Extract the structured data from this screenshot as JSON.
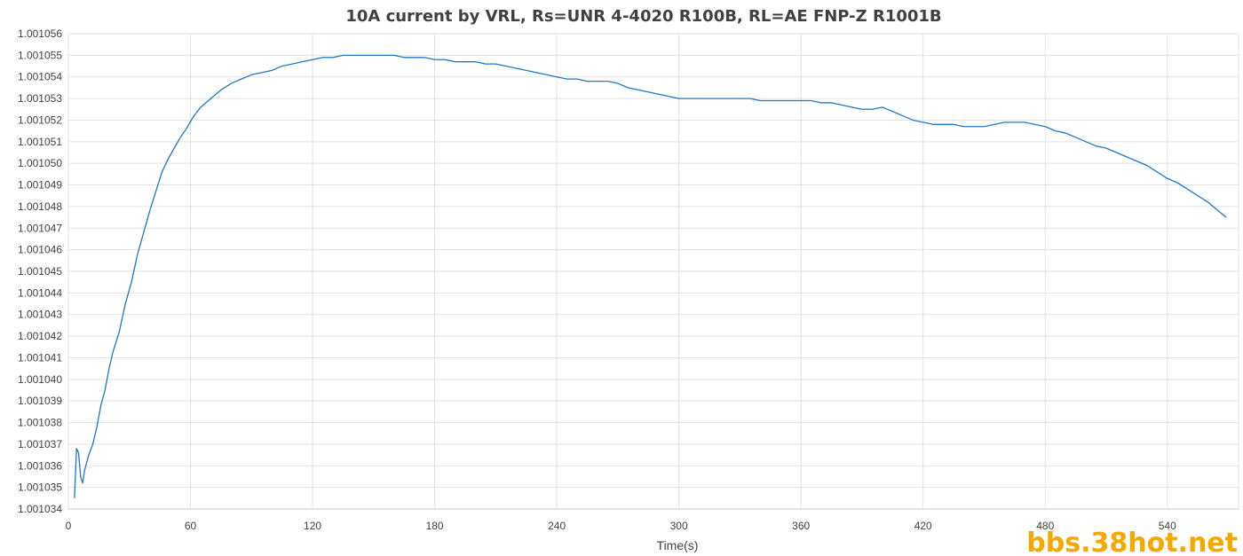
{
  "chart_data": {
    "type": "line",
    "title": "10A current by VRL, Rs=UNR 4-4020 R100B, RL=AE FNP-Z R1001B",
    "xlabel": "Time(s)",
    "ylabel": "",
    "xlim": [
      0,
      575
    ],
    "ylim": [
      1.001034,
      1.001056
    ],
    "x_ticks": [
      "0",
      "60",
      "120",
      "180",
      "240",
      "300",
      "360",
      "420",
      "480",
      "540"
    ],
    "y_ticks": [
      "1.001034",
      "1.001035",
      "1.001036",
      "1.001037",
      "1.001038",
      "1.001039",
      "1.001040",
      "1.001041",
      "1.001042",
      "1.001043",
      "1.001044",
      "1.001045",
      "1.001046",
      "1.001047",
      "1.001048",
      "1.001049",
      "1.001050",
      "1.001051",
      "1.001052",
      "1.001053",
      "1.001054",
      "1.001055",
      "1.001056"
    ],
    "grid": true,
    "legend": "none",
    "series": [
      {
        "color": "#1f77c4",
        "x": [
          3,
          4,
          5,
          6,
          7,
          8,
          10,
          12,
          14,
          16,
          18,
          20,
          22,
          25,
          28,
          31,
          34,
          37,
          40,
          43,
          46,
          49,
          52,
          55,
          58,
          61,
          65,
          70,
          75,
          80,
          85,
          90,
          95,
          100,
          105,
          110,
          115,
          120,
          125,
          130,
          135,
          140,
          145,
          150,
          155,
          160,
          165,
          170,
          175,
          180,
          185,
          190,
          195,
          200,
          205,
          210,
          215,
          220,
          225,
          230,
          235,
          240,
          245,
          250,
          255,
          260,
          265,
          270,
          275,
          280,
          285,
          290,
          295,
          300,
          305,
          310,
          315,
          320,
          325,
          330,
          335,
          340,
          345,
          350,
          355,
          360,
          365,
          370,
          375,
          380,
          385,
          390,
          395,
          400,
          405,
          410,
          415,
          420,
          425,
          430,
          435,
          440,
          445,
          450,
          455,
          460,
          465,
          470,
          475,
          480,
          485,
          490,
          495,
          500,
          505,
          510,
          515,
          520,
          525,
          530,
          535,
          540,
          545,
          550,
          555,
          560,
          565,
          569
        ],
        "y": [
          1.0010345,
          1.0010368,
          1.0010366,
          1.0010355,
          1.0010352,
          1.0010358,
          1.0010365,
          1.001037,
          1.0010378,
          1.0010388,
          1.0010395,
          1.0010405,
          1.0010413,
          1.0010422,
          1.0010435,
          1.0010445,
          1.0010458,
          1.0010468,
          1.0010478,
          1.0010487,
          1.0010496,
          1.0010502,
          1.0010507,
          1.0010512,
          1.0010516,
          1.0010521,
          1.0010526,
          1.001053,
          1.0010534,
          1.0010537,
          1.0010539,
          1.0010541,
          1.0010542,
          1.0010543,
          1.0010545,
          1.0010546,
          1.0010547,
          1.0010548,
          1.0010549,
          1.0010549,
          1.001055,
          1.001055,
          1.001055,
          1.001055,
          1.001055,
          1.001055,
          1.0010549,
          1.0010549,
          1.0010549,
          1.0010548,
          1.0010548,
          1.0010547,
          1.0010547,
          1.0010547,
          1.0010546,
          1.0010546,
          1.0010545,
          1.0010544,
          1.0010543,
          1.0010542,
          1.0010541,
          1.001054,
          1.0010539,
          1.0010539,
          1.0010538,
          1.0010538,
          1.0010538,
          1.0010537,
          1.0010535,
          1.0010534,
          1.0010533,
          1.0010532,
          1.0010531,
          1.001053,
          1.001053,
          1.001053,
          1.001053,
          1.001053,
          1.001053,
          1.001053,
          1.001053,
          1.0010529,
          1.0010529,
          1.0010529,
          1.0010529,
          1.0010529,
          1.0010529,
          1.0010528,
          1.0010528,
          1.0010527,
          1.0010526,
          1.0010525,
          1.0010525,
          1.0010526,
          1.0010524,
          1.0010522,
          1.001052,
          1.0010519,
          1.0010518,
          1.0010518,
          1.0010518,
          1.0010517,
          1.0010517,
          1.0010517,
          1.0010518,
          1.0010519,
          1.0010519,
          1.0010519,
          1.0010518,
          1.0010517,
          1.0010515,
          1.0010514,
          1.0010512,
          1.001051,
          1.0010508,
          1.0010507,
          1.0010505,
          1.0010503,
          1.0010501,
          1.0010499,
          1.0010496,
          1.0010493,
          1.0010491,
          1.0010488,
          1.0010485,
          1.0010482,
          1.0010478,
          1.0010475
        ]
      }
    ]
  },
  "watermark": "bbs.38hot.net"
}
